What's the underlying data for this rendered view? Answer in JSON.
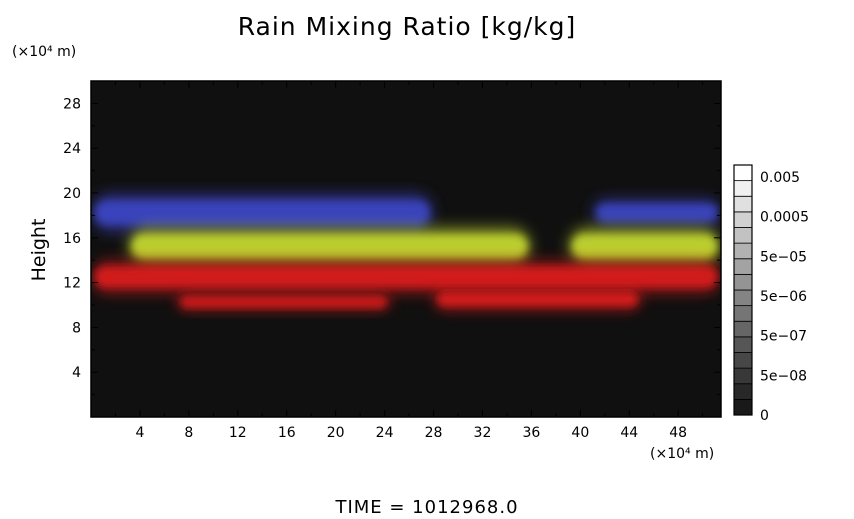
{
  "chart_data": {
    "type": "heatmap",
    "title": "Rain Mixing Ratio [kg/kg]",
    "xlabel": "",
    "ylabel": "Height",
    "x_unit": "(×10⁴ m)",
    "y_unit": "(×10⁴ m)",
    "xlim": [
      0,
      51.5
    ],
    "ylim": [
      0,
      30
    ],
    "x_ticks": [
      "4",
      "8",
      "12",
      "16",
      "20",
      "24",
      "28",
      "32",
      "36",
      "40",
      "44",
      "48"
    ],
    "y_ticks": [
      "4",
      "8",
      "12",
      "16",
      "20",
      "24",
      "28"
    ],
    "colorbar": {
      "labels": [
        "0",
        "5e−08",
        "5e−07",
        "5e−06",
        "5e−05",
        "0.0005",
        "0.005"
      ],
      "levels": 16
    },
    "colors": {
      "background": "#101010",
      "low_layer": "#e01e1e",
      "mid_layer": "#c8dc32",
      "upper_layer": "#3c46c8"
    },
    "regions": [
      {
        "color": "upper_layer",
        "x_range": [
          0,
          28
        ],
        "y_range": [
          16.5,
          20
        ]
      },
      {
        "color": "upper_layer",
        "x_range": [
          41,
          51.5
        ],
        "y_range": [
          17,
          19.5
        ]
      },
      {
        "color": "mid_layer",
        "x_range": [
          3,
          36
        ],
        "y_range": [
          13.5,
          17
        ]
      },
      {
        "color": "mid_layer",
        "x_range": [
          39,
          51.5
        ],
        "y_range": [
          13.5,
          17
        ]
      },
      {
        "color": "low_layer",
        "x_range": [
          0,
          51.5
        ],
        "y_range": [
          11,
          14
        ]
      },
      {
        "color": "low_layer",
        "x_range": [
          7,
          24.5
        ],
        "y_range": [
          9.5,
          11
        ]
      },
      {
        "color": "low_layer",
        "x_range": [
          28,
          45
        ],
        "y_range": [
          9.5,
          11.5
        ]
      }
    ]
  },
  "footer": {
    "time_label": "TIME = 1012968.0"
  }
}
